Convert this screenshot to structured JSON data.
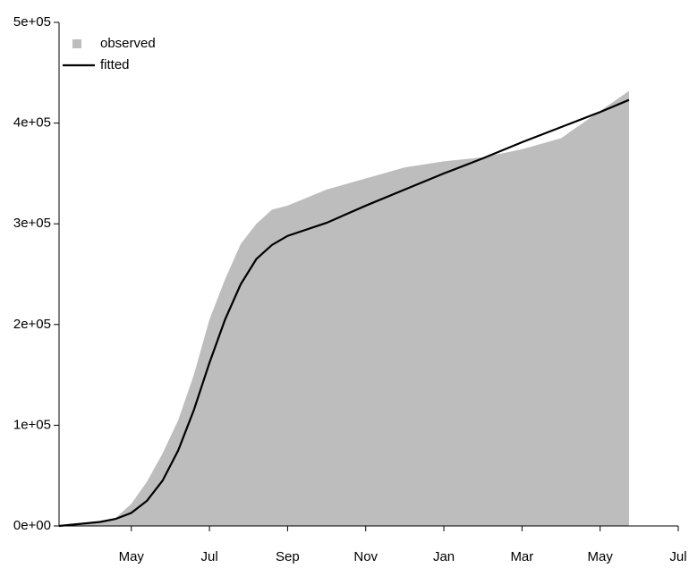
{
  "chart_data": {
    "type": "area-line",
    "x": [
      0.15,
      1.2,
      1.6,
      2,
      2.4,
      2.8,
      3.2,
      3.6,
      4,
      4.4,
      4.8,
      5.2,
      5.6,
      6,
      7,
      8,
      9,
      10,
      11,
      12,
      13,
      14,
      14.74
    ],
    "series": [
      {
        "name": "observed",
        "color": "#bdbdbd",
        "style": "area",
        "values": [
          0,
          5000,
          8000,
          22000,
          44000,
          72000,
          105000,
          150000,
          205000,
          245000,
          280000,
          300000,
          314000,
          318000,
          334000,
          345000,
          356000,
          362000,
          366000,
          374000,
          385000,
          412000,
          432000
        ]
      },
      {
        "name": "fitted",
        "color": "#000000",
        "style": "line",
        "values": [
          0,
          4000,
          7000,
          13000,
          25000,
          45000,
          75000,
          115000,
          162000,
          205000,
          240000,
          265000,
          279000,
          288000,
          301000,
          318000,
          334000,
          350000,
          365000,
          381000,
          396000,
          411000,
          423000
        ]
      }
    ],
    "xlim": [
      0.15,
      16
    ],
    "xticks": [
      {
        "value": 2,
        "label": "May"
      },
      {
        "value": 4,
        "label": "Jul"
      },
      {
        "value": 6,
        "label": "Sep"
      },
      {
        "value": 8,
        "label": "Nov"
      },
      {
        "value": 10,
        "label": "Jan"
      },
      {
        "value": 12,
        "label": "Mar"
      },
      {
        "value": 14,
        "label": "May"
      },
      {
        "value": 16,
        "label": "Jul"
      }
    ],
    "ylim": [
      0,
      500000
    ],
    "yticks": [
      {
        "value": 0,
        "label": "0e+00"
      },
      {
        "value": 100000,
        "label": "1e+05"
      },
      {
        "value": 200000,
        "label": "2e+05"
      },
      {
        "value": 300000,
        "label": "3e+05"
      },
      {
        "value": 400000,
        "label": "4e+05"
      },
      {
        "value": 500000,
        "label": "5e+05"
      }
    ],
    "legend": "top-left"
  }
}
